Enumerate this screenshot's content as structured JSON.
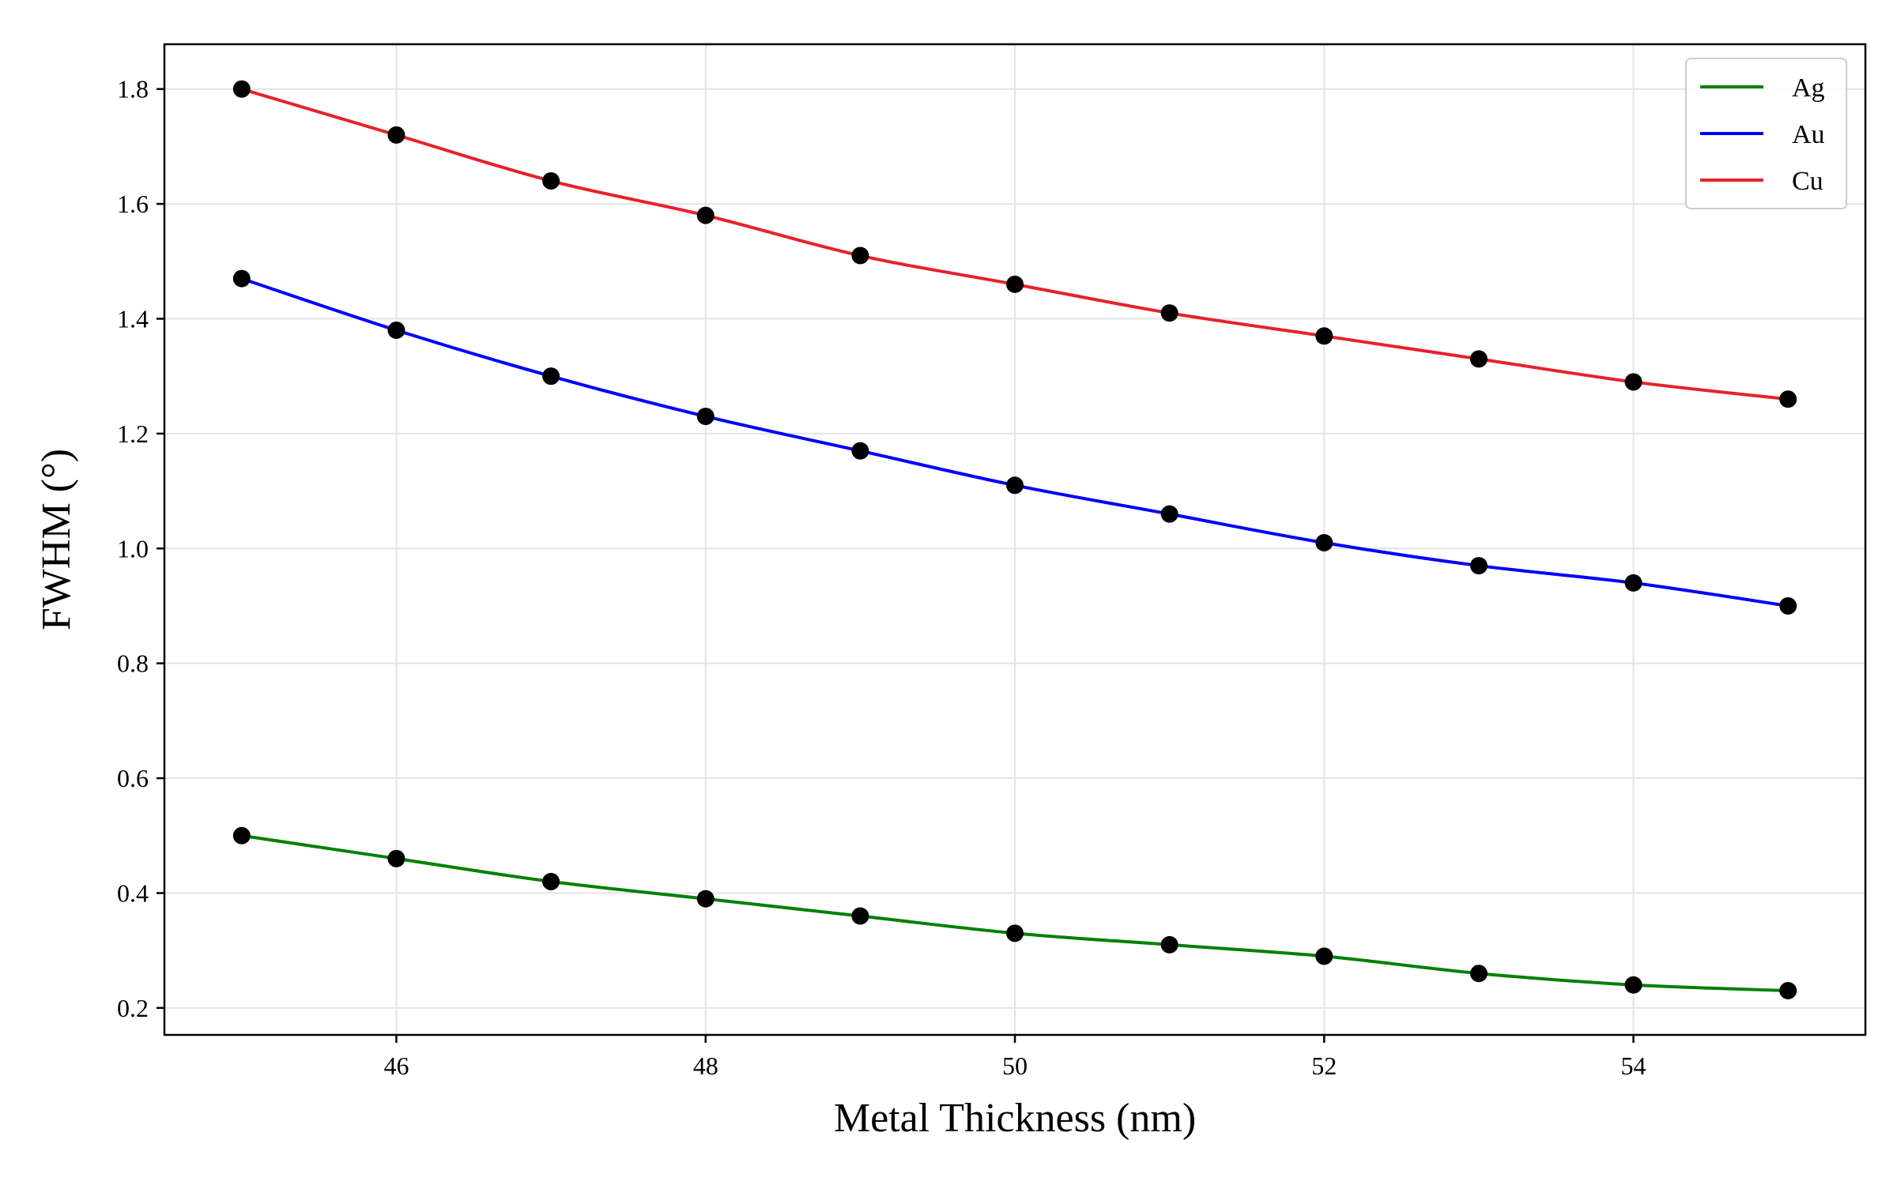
{
  "chart_data": {
    "type": "line",
    "title": "",
    "xlabel": "Metal Thickness (nm)",
    "ylabel": "FWHM (°)",
    "x": [
      45,
      46,
      47,
      48,
      49,
      50,
      51,
      52,
      53,
      54,
      55
    ],
    "series": [
      {
        "name": "Ag",
        "color": "#008000",
        "values": [
          0.5,
          0.46,
          0.42,
          0.39,
          0.36,
          0.33,
          0.31,
          0.29,
          0.26,
          0.24,
          0.23
        ]
      },
      {
        "name": "Au",
        "color": "#0000ff",
        "values": [
          1.47,
          1.38,
          1.3,
          1.23,
          1.17,
          1.11,
          1.06,
          1.01,
          0.97,
          0.94,
          0.9
        ]
      },
      {
        "name": "Cu",
        "color": "#e8212a",
        "values": [
          1.8,
          1.72,
          1.64,
          1.58,
          1.51,
          1.46,
          1.41,
          1.37,
          1.33,
          1.29,
          1.26
        ]
      }
    ],
    "marker_color": "#000000",
    "xlim": [
      44.5,
      55.5
    ],
    "ylim": [
      0.153,
      1.878
    ],
    "xticks": [
      "46",
      "48",
      "50",
      "52",
      "54"
    ],
    "yticks": [
      "0.2",
      "0.4",
      "0.6",
      "0.8",
      "1.0",
      "1.2",
      "1.4",
      "1.6",
      "1.8"
    ],
    "grid": true,
    "legend_position": "top-right"
  }
}
